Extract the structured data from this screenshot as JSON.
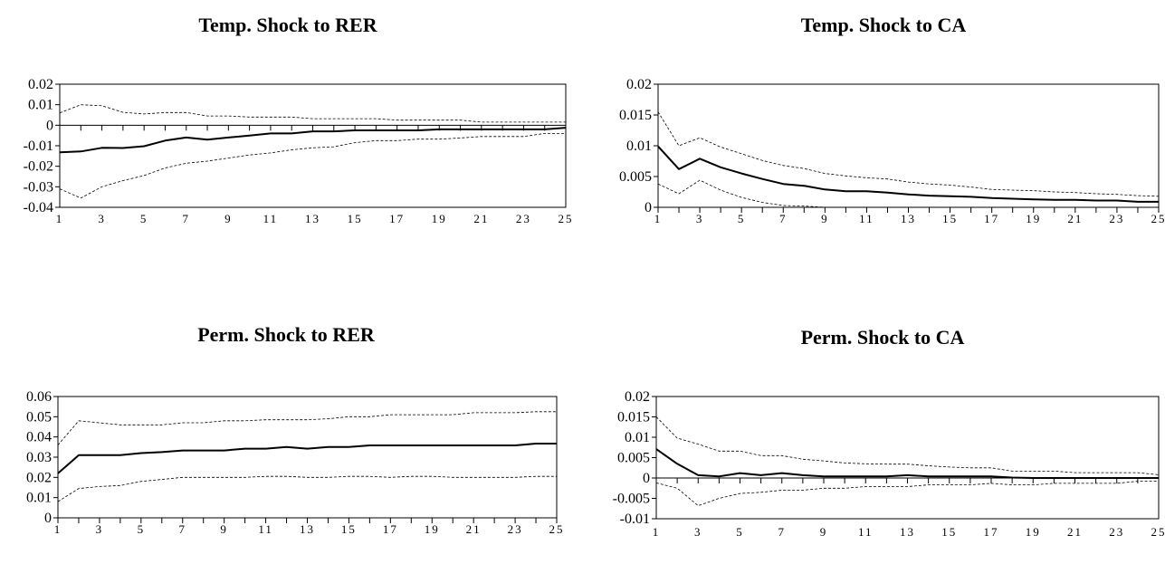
{
  "chart_data": [
    {
      "type": "line",
      "title": "Temp. Shock to RER",
      "x": [
        1,
        2,
        3,
        4,
        5,
        6,
        7,
        8,
        9,
        10,
        11,
        12,
        13,
        14,
        15,
        16,
        17,
        18,
        19,
        20,
        21,
        22,
        23,
        24,
        25
      ],
      "xticks": [
        1,
        3,
        5,
        7,
        9,
        11,
        13,
        15,
        17,
        19,
        21,
        23,
        25
      ],
      "ylim": [
        -0.04,
        0.02
      ],
      "yticks": [
        -0.04,
        -0.03,
        -0.02,
        -0.01,
        0,
        0.01,
        0.02
      ],
      "ytick_labels": [
        "-0.04",
        "-0.03",
        "-0.02",
        "-0.01",
        "0",
        "0.01",
        "0.02"
      ],
      "series": [
        {
          "style": "dashed",
          "values": [
            0.006,
            0.01,
            0.0095,
            0.0063,
            0.0055,
            0.0062,
            0.0062,
            0.0045,
            0.0045,
            0.004,
            0.004,
            0.004,
            0.0032,
            0.0032,
            0.0032,
            0.0032,
            0.0025,
            0.0025,
            0.0025,
            0.0025,
            0.0015,
            0.0015,
            0.0015,
            0.0015,
            0.0015
          ]
        },
        {
          "style": "solid",
          "values": [
            -0.0132,
            -0.0128,
            -0.011,
            -0.0111,
            -0.0102,
            -0.0075,
            -0.006,
            -0.007,
            -0.006,
            -0.005,
            -0.004,
            -0.004,
            -0.003,
            -0.003,
            -0.0025,
            -0.0025,
            -0.0025,
            -0.0025,
            -0.002,
            -0.002,
            -0.002,
            -0.002,
            -0.002,
            -0.002,
            -0.0012
          ]
        },
        {
          "style": "dashed",
          "values": [
            -0.031,
            -0.0355,
            -0.03,
            -0.027,
            -0.0245,
            -0.0208,
            -0.0185,
            -0.0175,
            -0.016,
            -0.0145,
            -0.0135,
            -0.012,
            -0.011,
            -0.0105,
            -0.0085,
            -0.0075,
            -0.0075,
            -0.0068,
            -0.0068,
            -0.0062,
            -0.0055,
            -0.0055,
            -0.0055,
            -0.004,
            -0.004
          ]
        }
      ]
    },
    {
      "type": "line",
      "title": "Temp. Shock to CA",
      "x": [
        1,
        2,
        3,
        4,
        5,
        6,
        7,
        8,
        9,
        10,
        11,
        12,
        13,
        14,
        15,
        16,
        17,
        18,
        19,
        20,
        21,
        22,
        23,
        24,
        25
      ],
      "xticks": [
        1,
        3,
        5,
        7,
        9,
        11,
        13,
        15,
        17,
        19,
        21,
        23,
        25
      ],
      "ylim": [
        0,
        0.02
      ],
      "yticks": [
        0,
        0.005,
        0.01,
        0.015,
        0.02
      ],
      "ytick_labels": [
        "0",
        "0.005",
        "0.01",
        "0.015",
        "0.02"
      ],
      "series": [
        {
          "style": "dashed",
          "values": [
            0.0155,
            0.01,
            0.0113,
            0.0098,
            0.0087,
            0.0076,
            0.0068,
            0.0063,
            0.0055,
            0.0051,
            0.0048,
            0.0046,
            0.0041,
            0.0038,
            0.0036,
            0.0033,
            0.0029,
            0.0028,
            0.0027,
            0.0025,
            0.0024,
            0.0022,
            0.0021,
            0.0019,
            0.0018
          ]
        },
        {
          "style": "solid",
          "values": [
            0.0099,
            0.0062,
            0.0079,
            0.0065,
            0.0055,
            0.0046,
            0.0038,
            0.0035,
            0.0029,
            0.0026,
            0.0026,
            0.0024,
            0.0021,
            0.0019,
            0.0018,
            0.0017,
            0.0015,
            0.0014,
            0.0013,
            0.0012,
            0.0012,
            0.0011,
            0.0011,
            0.0009,
            0.0009
          ]
        },
        {
          "style": "dashed",
          "values": [
            0.0038,
            0.0022,
            0.0044,
            0.0028,
            0.0016,
            0.0008,
            0.0003,
            0.0002,
            0,
            0,
            0,
            0,
            0,
            0,
            0,
            0,
            0,
            0,
            0,
            0,
            0,
            0,
            0,
            0,
            0
          ]
        }
      ]
    },
    {
      "type": "line",
      "title": "Perm. Shock to RER",
      "x": [
        1,
        2,
        3,
        4,
        5,
        6,
        7,
        8,
        9,
        10,
        11,
        12,
        13,
        14,
        15,
        16,
        17,
        18,
        19,
        20,
        21,
        22,
        23,
        24,
        25
      ],
      "xticks": [
        1,
        3,
        5,
        7,
        9,
        11,
        13,
        15,
        17,
        19,
        21,
        23,
        25
      ],
      "ylim": [
        0,
        0.06
      ],
      "yticks": [
        0,
        0.01,
        0.02,
        0.03,
        0.04,
        0.05,
        0.06
      ],
      "ytick_labels": [
        "0",
        "0.01",
        "0.02",
        "0.03",
        "0.04",
        "0.05",
        "0.06"
      ],
      "series": [
        {
          "style": "dashed",
          "values": [
            0.036,
            0.048,
            0.047,
            0.046,
            0.046,
            0.046,
            0.047,
            0.047,
            0.048,
            0.048,
            0.0485,
            0.0485,
            0.0485,
            0.049,
            0.05,
            0.05,
            0.051,
            0.051,
            0.051,
            0.051,
            0.052,
            0.052,
            0.052,
            0.0525,
            0.0525
          ]
        },
        {
          "style": "solid",
          "values": [
            0.022,
            0.031,
            0.031,
            0.031,
            0.032,
            0.0325,
            0.0333,
            0.0333,
            0.0333,
            0.0342,
            0.0342,
            0.035,
            0.0342,
            0.035,
            0.035,
            0.0358,
            0.0358,
            0.0358,
            0.0358,
            0.0358,
            0.0358,
            0.0358,
            0.0358,
            0.0367,
            0.0367
          ]
        },
        {
          "style": "dashed",
          "values": [
            0.008,
            0.0145,
            0.0155,
            0.016,
            0.018,
            0.019,
            0.02,
            0.02,
            0.02,
            0.02,
            0.0205,
            0.0205,
            0.02,
            0.02,
            0.0205,
            0.0205,
            0.02,
            0.0205,
            0.0205,
            0.02,
            0.02,
            0.02,
            0.02,
            0.0205,
            0.0205
          ]
        }
      ]
    },
    {
      "type": "line",
      "title": "Perm. Shock to CA",
      "x": [
        1,
        2,
        3,
        4,
        5,
        6,
        7,
        8,
        9,
        10,
        11,
        12,
        13,
        14,
        15,
        16,
        17,
        18,
        19,
        20,
        21,
        22,
        23,
        24,
        25
      ],
      "xticks": [
        1,
        3,
        5,
        7,
        9,
        11,
        13,
        15,
        17,
        19,
        21,
        23,
        25
      ],
      "ylim": [
        -0.01,
        0.02
      ],
      "yticks": [
        -0.01,
        -0.005,
        0,
        0.005,
        0.01,
        0.015,
        0.02
      ],
      "ytick_labels": [
        "-0.01",
        "-0.005",
        "0",
        "0.005",
        "0.01",
        "0.015",
        "0.02"
      ],
      "series": [
        {
          "style": "dashed",
          "values": [
            0.015,
            0.0098,
            0.0083,
            0.0066,
            0.0066,
            0.0055,
            0.0055,
            0.0046,
            0.0042,
            0.0037,
            0.0035,
            0.0034,
            0.0034,
            0.003,
            0.0027,
            0.0025,
            0.0025,
            0.0017,
            0.0017,
            0.0017,
            0.0013,
            0.0013,
            0.0013,
            0.0013,
            0.0008
          ]
        },
        {
          "style": "solid",
          "values": [
            0.0071,
            0.0035,
            0.0007,
            0.0004,
            0.0012,
            0.0007,
            0.0012,
            0.0007,
            0.0004,
            0.0004,
            0.0004,
            0.0004,
            0.0007,
            0.0004,
            0.0004,
            0.0004,
            0.0004,
            0.0001,
            0,
            0,
            0,
            0,
            0,
            0,
            0
          ]
        },
        {
          "style": "dashed",
          "values": [
            -0.0012,
            -0.0025,
            -0.0068,
            -0.005,
            -0.0038,
            -0.0035,
            -0.003,
            -0.003,
            -0.0025,
            -0.0025,
            -0.0021,
            -0.0021,
            -0.0021,
            -0.0017,
            -0.0017,
            -0.0017,
            -0.0013,
            -0.0017,
            -0.0017,
            -0.0013,
            -0.0013,
            -0.0013,
            -0.0013,
            -0.0008,
            -0.0008
          ]
        }
      ]
    }
  ]
}
